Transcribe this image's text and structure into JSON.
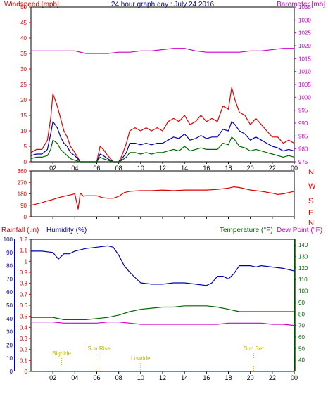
{
  "colors": {
    "red": "#dd0000",
    "blue": "#0000aa",
    "green": "#006600",
    "magenta": "#cc00cc",
    "yellow": "#bbbb00",
    "frame": "#000000",
    "background": "#ffffff"
  },
  "chart_data": [
    {
      "type": "line",
      "title": "24 hour graph day : July 24 2016",
      "left_axis_label": "Windspeed [mph]",
      "right_axis_label": "Barometer [mb]",
      "left_ylim": [
        0,
        50
      ],
      "left_ticks": [
        "0",
        "5",
        "10",
        "15",
        "20",
        "25",
        "30",
        "35",
        "40",
        "45",
        "50"
      ],
      "right_ylim": [
        975,
        1035
      ],
      "right_ticks": [
        "975",
        "980",
        "985",
        "990",
        "995",
        "1000",
        "1005",
        "1010",
        "1015",
        "1020",
        "1025",
        "1030",
        "1035"
      ],
      "x_ticks": [
        "02",
        "04",
        "06",
        "08",
        "10",
        "12",
        "14",
        "16",
        "18",
        "20",
        "22",
        "00"
      ],
      "x_hours": [
        2,
        4,
        6,
        8,
        10,
        12,
        14,
        16,
        18,
        20,
        22,
        24
      ],
      "series": [
        {
          "color": "red",
          "axis": "left",
          "x": [
            0,
            0.5,
            1,
            1.5,
            1.8,
            2,
            2.4,
            2.7,
            3,
            3.3,
            3.6,
            4,
            4.5,
            5,
            5.5,
            6,
            6.3,
            6.6,
            7,
            7.5,
            8,
            8.3,
            8.7,
            9,
            9.5,
            10,
            10.5,
            11,
            11.5,
            12,
            12.5,
            13,
            13.5,
            14,
            14.5,
            15,
            15.5,
            16,
            16.5,
            17,
            17.5,
            18,
            18.3,
            18.6,
            19,
            19.5,
            20,
            20.5,
            21,
            21.5,
            22,
            22.5,
            23,
            23.5,
            24
          ],
          "values": [
            3,
            4,
            4,
            7,
            14,
            22,
            18,
            14,
            10,
            8,
            5,
            3,
            0,
            0,
            0,
            0,
            5,
            4,
            2,
            0,
            0,
            2,
            6,
            10,
            11,
            10,
            11,
            10,
            11,
            10,
            13,
            14,
            13,
            15,
            12,
            13,
            15,
            13,
            14,
            13,
            18,
            17,
            24,
            20,
            16,
            15,
            12,
            14,
            12,
            10,
            8,
            8,
            6,
            7,
            6
          ]
        },
        {
          "color": "blue",
          "axis": "left",
          "x": [
            0,
            0.5,
            1,
            1.5,
            1.8,
            2,
            2.4,
            2.7,
            3,
            3.3,
            3.6,
            4,
            4.5,
            5,
            5.5,
            6,
            6.3,
            6.6,
            7,
            7.5,
            8,
            8.3,
            8.7,
            9,
            9.5,
            10,
            10.5,
            11,
            11.5,
            12,
            12.5,
            13,
            13.5,
            14,
            14.5,
            15,
            15.5,
            16,
            16.5,
            17,
            17.5,
            18,
            18.3,
            18.6,
            19,
            19.5,
            20,
            20.5,
            21,
            21.5,
            22,
            22.5,
            23,
            23.5,
            24
          ],
          "values": [
            2,
            2.5,
            2.5,
            4,
            9,
            13,
            11,
            8,
            6,
            5,
            3,
            2,
            0,
            0,
            0,
            0,
            2.5,
            2,
            1,
            0,
            0,
            1,
            3,
            6,
            6,
            5.5,
            6,
            5.5,
            6,
            6,
            7,
            8,
            7.5,
            9,
            7,
            7.5,
            8.5,
            7.5,
            8,
            8,
            10.5,
            10,
            13,
            12,
            10,
            9,
            7,
            8,
            7,
            6,
            5,
            4.5,
            3.5,
            4,
            3.5
          ]
        },
        {
          "color": "green",
          "axis": "left",
          "x": [
            0,
            0.5,
            1,
            1.5,
            1.8,
            2,
            2.4,
            2.7,
            3,
            3.3,
            3.6,
            4,
            4.5,
            5,
            5.5,
            6,
            6.3,
            6.6,
            7,
            7.5,
            8,
            8.3,
            8.7,
            9,
            9.5,
            10,
            10.5,
            11,
            11.5,
            12,
            12.5,
            13,
            13.5,
            14,
            14.5,
            15,
            15.5,
            16,
            16.5,
            17,
            17.5,
            18,
            18.3,
            18.6,
            19,
            19.5,
            20,
            20.5,
            21,
            21.5,
            22,
            22.5,
            23,
            23.5,
            24
          ],
          "values": [
            1,
            1.5,
            1.5,
            2,
            4,
            7,
            6,
            4,
            3,
            2,
            1,
            0.5,
            0,
            0,
            0,
            0,
            1.5,
            1,
            0.5,
            0,
            0,
            0.5,
            1.5,
            3,
            3,
            2.5,
            3,
            2.5,
            3,
            3,
            3.5,
            4,
            3.5,
            5,
            3.5,
            4,
            4.5,
            4,
            4,
            4,
            6,
            5.5,
            8,
            7,
            5,
            4.5,
            3.5,
            4,
            3.5,
            3,
            2.5,
            2,
            1.5,
            2,
            1.5
          ]
        },
        {
          "color": "magenta",
          "axis": "right",
          "x": [
            0,
            1,
            2,
            3,
            4,
            5,
            6,
            7,
            8,
            9,
            10,
            11,
            12,
            13,
            14,
            15,
            16,
            17,
            18,
            19,
            20,
            21,
            22,
            23,
            24
          ],
          "values": [
            1018,
            1018,
            1018,
            1018,
            1018,
            1017,
            1017,
            1017,
            1017.5,
            1017.5,
            1018,
            1018,
            1018.5,
            1019,
            1019,
            1018,
            1017.5,
            1017.5,
            1017.5,
            1017.5,
            1018,
            1018,
            1018.5,
            1019,
            1019
          ]
        }
      ]
    },
    {
      "type": "line",
      "title": "",
      "left_ylim": [
        0,
        360
      ],
      "left_ticks": [
        "0",
        "90",
        "180",
        "270",
        "360"
      ],
      "right_ticks": [
        "N",
        "W",
        "S",
        "E",
        "N"
      ],
      "x_hours": [
        2,
        4,
        6,
        8,
        10,
        12,
        14,
        16,
        18,
        20,
        22,
        24
      ],
      "series": [
        {
          "color": "red",
          "axis": "left",
          "x": [
            0,
            0.5,
            1,
            1.5,
            2,
            2.5,
            3,
            3.5,
            4,
            4.3,
            4.5,
            4.8,
            5,
            5.5,
            6,
            6.5,
            7,
            7.5,
            8,
            8.5,
            9,
            10,
            11,
            12,
            13,
            14,
            15,
            16,
            17,
            18,
            18.5,
            19,
            20,
            21,
            22,
            22.5,
            23,
            23.5,
            24
          ],
          "values": [
            90,
            100,
            110,
            125,
            135,
            150,
            160,
            170,
            180,
            60,
            185,
            160,
            165,
            165,
            165,
            150,
            145,
            145,
            160,
            190,
            200,
            205,
            205,
            210,
            205,
            210,
            210,
            210,
            215,
            225,
            235,
            230,
            210,
            200,
            185,
            175,
            180,
            190,
            200
          ]
        }
      ]
    },
    {
      "type": "line",
      "title": "",
      "labels": {
        "rainfall": "Rainfall (.in)",
        "humidity": "Humidity (%)",
        "temperature": "Temperature (°F)",
        "dew_point": "Dew Point (°F)"
      },
      "rain_ticks": [
        "0",
        "0.1",
        "0.2",
        "0.3",
        "0.4",
        "0.5",
        "0.6",
        "0.7",
        "0.8",
        "0.9",
        "1",
        "1.1",
        "1.2"
      ],
      "rain_ylim": [
        0,
        1.2
      ],
      "humidity_ticks": [
        "0",
        "10",
        "20",
        "30",
        "40",
        "50",
        "60",
        "70",
        "80",
        "90",
        "100"
      ],
      "humidity_ylim": [
        0,
        100
      ],
      "temp_ticks": [
        "40",
        "50",
        "60",
        "70",
        "80",
        "90",
        "100",
        "110",
        "120",
        "130",
        "140"
      ],
      "temp_ylim": [
        30,
        145
      ],
      "x_ticks": [
        "02",
        "04",
        "06",
        "08",
        "10",
        "12",
        "14",
        "16",
        "18",
        "20",
        "22",
        "00"
      ],
      "x_hours": [
        2,
        4,
        6,
        8,
        10,
        12,
        14,
        16,
        18,
        20,
        22,
        24
      ],
      "annotations": [
        {
          "text": "Bighide",
          "hour": 2.8
        },
        {
          "text": "Sun Rise",
          "hour": 6.2
        },
        {
          "text": "Lowtide",
          "hour": 10.0
        },
        {
          "text": "Sun Set",
          "hour": 20.3
        }
      ],
      "series": [
        {
          "color": "blue",
          "axis": "humidity",
          "x": [
            0,
            1,
            2,
            2.5,
            3,
            3.5,
            4,
            5,
            6,
            7,
            7.5,
            8,
            8.5,
            9,
            9.5,
            10,
            11,
            12,
            13,
            14,
            15,
            16,
            16.5,
            17,
            17.5,
            18,
            18.5,
            19,
            20,
            20.5,
            21,
            22,
            23,
            24
          ],
          "values": [
            91,
            91,
            90,
            85,
            89,
            89,
            91,
            93,
            94,
            95,
            94,
            88,
            80,
            75,
            71,
            67,
            66,
            66,
            67,
            67,
            66,
            65,
            67,
            72,
            72,
            70,
            74,
            80,
            80,
            79,
            80,
            79,
            78,
            76
          ]
        },
        {
          "color": "green",
          "axis": "temp",
          "x": [
            0,
            1,
            2,
            3,
            4,
            5,
            6,
            7,
            8,
            9,
            10,
            11,
            12,
            13,
            14,
            15,
            16,
            17,
            18,
            19,
            20,
            21,
            22,
            23,
            24
          ],
          "values": [
            77,
            77,
            77,
            75,
            75,
            75,
            76,
            77,
            79,
            82,
            84,
            85,
            86,
            86,
            87,
            87,
            87,
            86,
            84,
            82,
            82,
            82,
            82,
            82,
            82
          ]
        },
        {
          "color": "magenta",
          "axis": "temp",
          "x": [
            0,
            1,
            2,
            3,
            4,
            5,
            6,
            7,
            8,
            9,
            10,
            11,
            12,
            13,
            14,
            15,
            16,
            17,
            18,
            19,
            20,
            21,
            22,
            23,
            24
          ],
          "values": [
            73,
            73,
            73,
            72,
            72,
            72,
            72,
            73,
            73,
            72,
            71,
            71,
            71,
            71,
            71,
            71,
            71,
            71,
            72,
            72,
            72,
            72,
            71,
            71,
            70
          ]
        },
        {
          "color": "red",
          "axis": "rain",
          "x": [
            0,
            24
          ],
          "values": [
            0,
            0
          ]
        }
      ]
    }
  ]
}
